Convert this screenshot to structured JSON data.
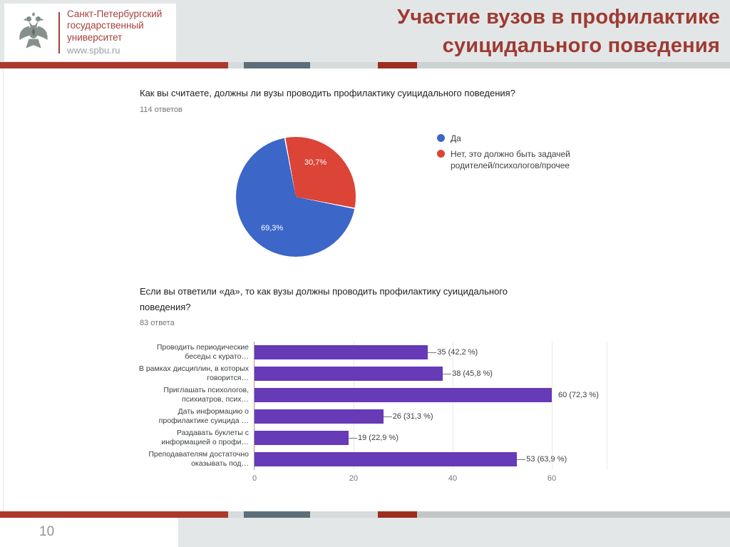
{
  "header": {
    "logo": {
      "name_line1": "Санкт-Петербургский",
      "name_line2": "государственный",
      "name_line3": "университет",
      "url": "www.spbu.ru"
    },
    "title_line1": "Участие вузов в профилактике",
    "title_line2": "суицидального поведения",
    "title_color": "#9e3a33"
  },
  "footer": {
    "page_number": "10"
  },
  "chart_data": [
    {
      "type": "pie",
      "question": "Как вы считаете, должны ли вузы проводить профилактику суицидального поведения?",
      "responses_label": "114 ответов",
      "legend_position": "right",
      "slices": [
        {
          "label": "Да",
          "pct": 69.3,
          "pct_label": "69,3%",
          "color": "#3c66c8"
        },
        {
          "label": "Нет, это должно быть задачей родителей/психологов/прочее",
          "pct": 30.7,
          "pct_label": "30,7%",
          "color": "#db4437"
        }
      ]
    },
    {
      "type": "bar",
      "question": "Если вы ответили «да», то как вузы должны проводить профилактику суицидального поведения?",
      "responses_label": "83 ответа",
      "orientation": "horizontal",
      "bar_color": "#673ab7",
      "grid": true,
      "xlim": [
        0,
        60
      ],
      "x_ticks": [
        "0",
        "20",
        "40",
        "60"
      ],
      "bars": [
        {
          "label_lines": [
            "Проводить периодические",
            "беседы с курато…"
          ],
          "value": 35,
          "value_label": "35 (42,2 %)"
        },
        {
          "label_lines": [
            "В рамках дисциплин, в которых",
            "говорится…"
          ],
          "value": 38,
          "value_label": "38 (45,8 %)"
        },
        {
          "label_lines": [
            "Приглашать психологов,",
            "психиатров, псих…"
          ],
          "value": 60,
          "value_label": "60 (72,3 %)"
        },
        {
          "label_lines": [
            "Дать информацию о",
            "профилактике суицида …"
          ],
          "value": 26,
          "value_label": "26 (31,3 %)"
        },
        {
          "label_lines": [
            "Раздавать буклеты с",
            "информацией о профи…"
          ],
          "value": 19,
          "value_label": "19 (22,9 %)"
        },
        {
          "label_lines": [
            "Преподавателям достаточно",
            "оказывать под…"
          ],
          "value": 53,
          "value_label": "53 (63,9 %)"
        }
      ]
    }
  ]
}
